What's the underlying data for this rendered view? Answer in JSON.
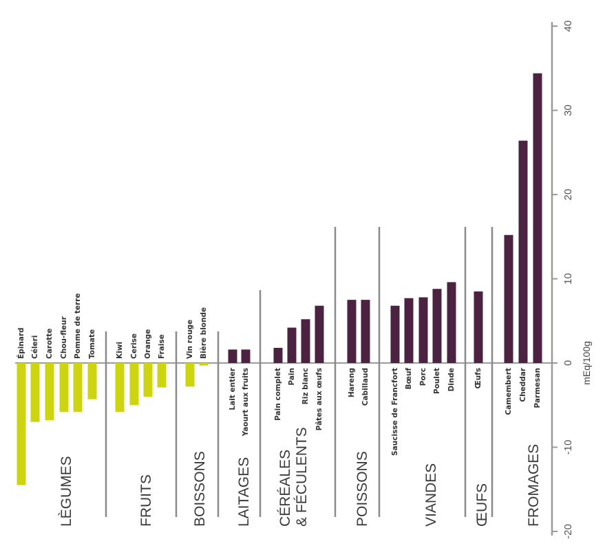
{
  "chart_data": {
    "type": "bar",
    "ylabel": "mEq/100g",
    "ylim": [
      -20,
      40
    ],
    "yticks": [
      "-20",
      "-10",
      "0",
      "10",
      "20",
      "30",
      "40"
    ],
    "colors": {
      "negative": "#cdd410",
      "positive": "#4b2341",
      "axis": "#9a9a9a",
      "divider": "#8a8a8a"
    },
    "groups": [
      {
        "label": [
          "LÈGUMES"
        ],
        "categories": [
          "Épinard",
          "Céleri",
          "Carotte",
          "Chou-fleur",
          "Pomme de terre",
          "Tomate"
        ],
        "values": [
          -14.5,
          -7,
          -6.8,
          -5.8,
          -5.8,
          -4.3
        ]
      },
      {
        "label": [
          "FRUITS"
        ],
        "categories": [
          "Kiwi",
          "Cerise",
          "Orange",
          "Fraise"
        ],
        "values": [
          -5.8,
          -5,
          -4,
          -2.9
        ]
      },
      {
        "label": [
          "BOISSONS"
        ],
        "categories": [
          "Vin rouge",
          "Bière blonde"
        ],
        "values": [
          -2.8,
          -0.3
        ]
      },
      {
        "label": [
          "LAITAGES"
        ],
        "categories": [
          "Lait entier",
          "Yaourt aux fruits"
        ],
        "values": [
          1.6,
          1.6
        ]
      },
      {
        "label": [
          "CÉRÉALES",
          "& FÉCULENTS"
        ],
        "categories": [
          "Pain complet",
          "Pain",
          "Riz blanc",
          "Pâtes aux œufs"
        ],
        "values": [
          1.8,
          4.2,
          5.2,
          6.8
        ]
      },
      {
        "label": [
          "POISSONS"
        ],
        "categories": [
          "Hareng",
          "Cabillaud"
        ],
        "values": [
          7.5,
          7.5
        ]
      },
      {
        "label": [
          "VIANDES"
        ],
        "categories": [
          "Saucisse de Francfort",
          "Bœuf",
          "Porc",
          "Poulet",
          "Dinde"
        ],
        "values": [
          6.8,
          7.7,
          7.8,
          8.8,
          9.6
        ]
      },
      {
        "label": [
          "ŒUFS"
        ],
        "categories": [
          "Œufs"
        ],
        "values": [
          8.5
        ]
      },
      {
        "label": [
          "FROMAGES"
        ],
        "categories": [
          "Camembert",
          "Cheddar",
          "Parmesan"
        ],
        "values": [
          15.2,
          26.4,
          34.4
        ]
      }
    ]
  }
}
